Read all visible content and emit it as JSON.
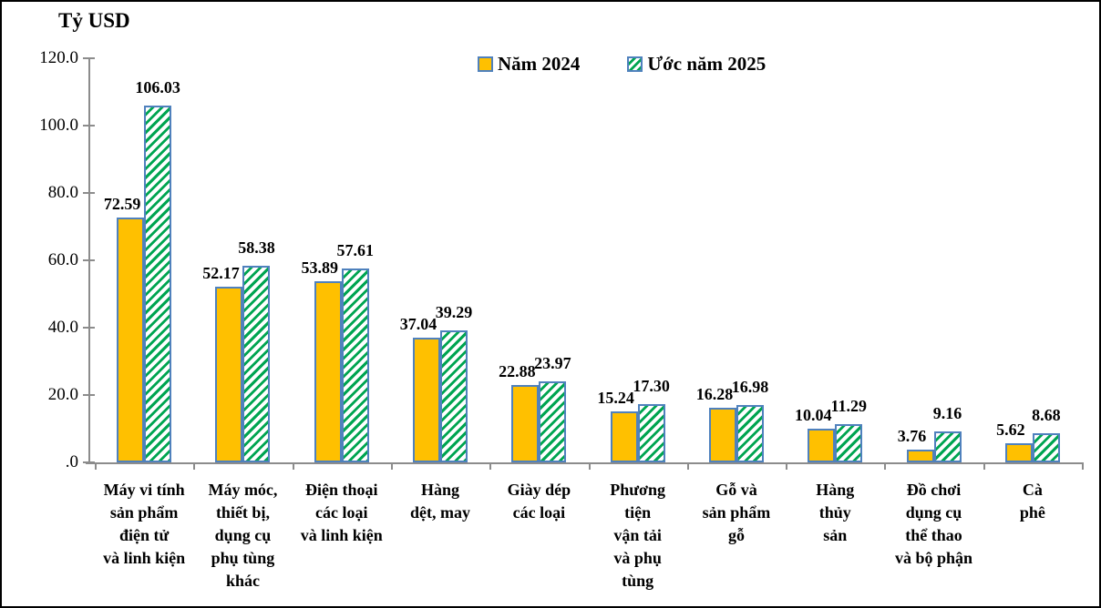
{
  "chart": {
    "unit_label": "Tỷ USD"
  },
  "chart_data": {
    "type": "bar",
    "title": "Tỷ USD",
    "legend_position": "top",
    "grid": false,
    "ylim": [
      0,
      120
    ],
    "y_axis": {
      "ticks": [
        {
          "label": "120.0",
          "value": 120
        },
        {
          "label": "100.0",
          "value": 100
        },
        {
          "label": "80.0",
          "value": 80
        },
        {
          "label": "60.0",
          "value": 60
        },
        {
          "label": "40.0",
          "value": 40
        },
        {
          "label": "20.0",
          "value": 20
        },
        {
          "label": ".0",
          "value": 0
        }
      ]
    },
    "categories": [
      "Máy vi tính sản phẩm điện tử và linh kiện",
      "Máy móc, thiết bị, dụng cụ phụ tùng khác",
      "Điện thoại các loại và linh kiện",
      "Hàng dệt, may",
      "Giày dép các loại",
      "Phương tiện vận tải và phụ tùng",
      "Gỗ và sản phẩm gỗ",
      "Hàng thủy sản",
      "Đồ chơi dụng cụ thể thao và bộ phận",
      "Cà phê"
    ],
    "category_label_lines": [
      [
        "Máy vi tính",
        "sản phẩm",
        "điện tử",
        "và linh kiện"
      ],
      [
        "Máy móc,",
        "thiết bị,",
        "dụng cụ",
        "phụ tùng",
        "khác"
      ],
      [
        "Điện thoại",
        "các loại",
        "và linh kiện"
      ],
      [
        "Hàng",
        "dệt, may"
      ],
      [
        "Giày dép",
        "các loại"
      ],
      [
        "Phương",
        "tiện",
        "vận tải",
        "và phụ",
        "tùng"
      ],
      [
        "Gỗ và",
        "sản phẩm",
        "gỗ"
      ],
      [
        "Hàng",
        "thủy",
        "sản"
      ],
      [
        "Đồ chơi",
        "dụng cụ",
        "thể thao",
        "và bộ phận"
      ],
      [
        "Cà",
        "phê"
      ]
    ],
    "series": [
      {
        "name": "Năm 2024",
        "style": "solid",
        "values": [
          72.59,
          52.17,
          53.89,
          37.04,
          22.88,
          15.24,
          16.28,
          10.04,
          3.76,
          5.62
        ],
        "labels": [
          "72.59",
          "52.17",
          "53.89",
          "37.04",
          "22.88",
          "15.24",
          "16.28",
          "10.04",
          "3.76",
          "5.62"
        ]
      },
      {
        "name": "Ước năm 2025",
        "style": "hatched",
        "values": [
          106.03,
          58.38,
          57.61,
          39.29,
          23.97,
          17.3,
          16.98,
          11.29,
          9.16,
          8.68
        ],
        "labels": [
          "106.03",
          "58.38",
          "57.61",
          "39.29",
          "23.97",
          "17.30",
          "16.98",
          "11.29",
          "9.16",
          "8.68"
        ]
      }
    ],
    "colors": {
      "nam_2024_fill": "#FFC000",
      "bar_border": "#4F81BD",
      "uoc_2025_stripe": "#00A551",
      "axis_line": "#8C8C8C",
      "text": "#000000"
    }
  }
}
